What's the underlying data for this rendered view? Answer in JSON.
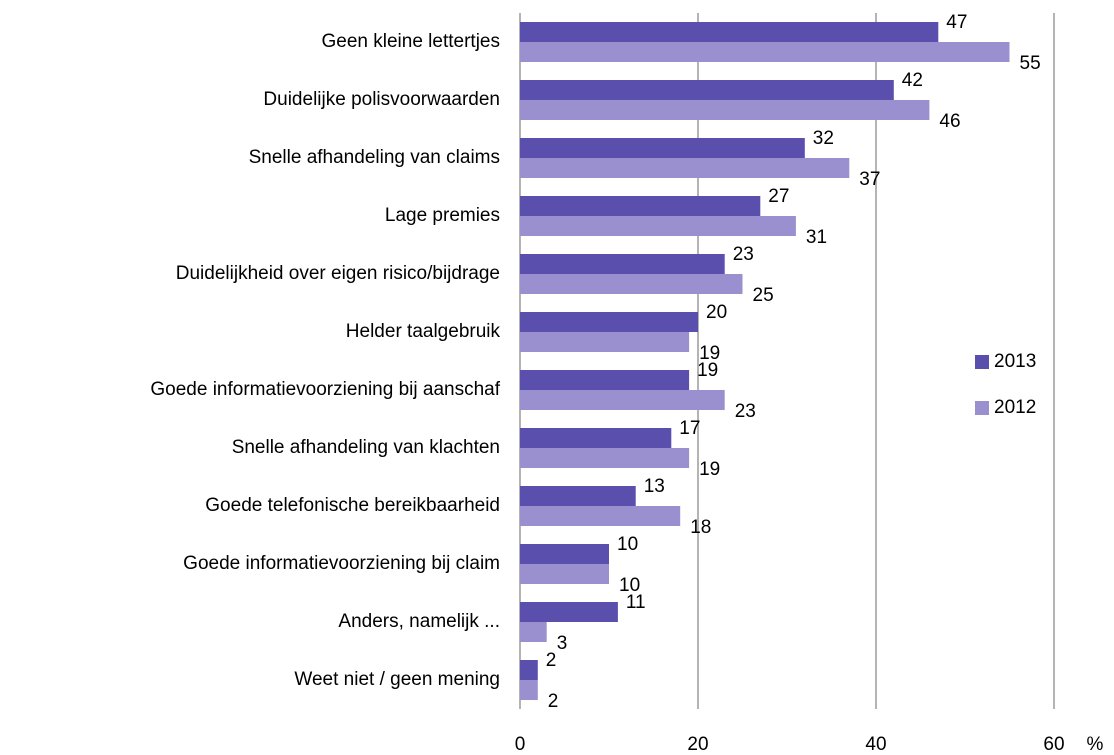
{
  "chart_data": {
    "type": "bar",
    "orientation": "horizontal",
    "categories": [
      "Geen kleine lettertjes",
      "Duidelijke polisvoorwaarden",
      "Snelle afhandeling van claims",
      "Lage premies",
      "Duidelijkheid over eigen risico/bijdrage",
      "Helder taalgebruik",
      "Goede informatievoorziening bij aanschaf",
      "Snelle afhandeling van klachten",
      "Goede telefonische bereikbaarheid",
      "Goede informatievoorziening bij claim",
      "Anders, namelijk ...",
      "Weet niet / geen mening"
    ],
    "series": [
      {
        "name": "2013",
        "color": "#5a4fad",
        "values": [
          47,
          42,
          32,
          27,
          23,
          20,
          19,
          17,
          13,
          10,
          11,
          2
        ]
      },
      {
        "name": "2012",
        "color": "#9a90d0",
        "values": [
          55,
          46,
          37,
          31,
          25,
          19,
          23,
          19,
          18,
          10,
          3,
          2
        ]
      }
    ],
    "xlabel": "%",
    "xlim": [
      0,
      60
    ],
    "xticks": [
      0,
      20,
      40,
      60
    ],
    "grid": true,
    "legend": "right"
  }
}
